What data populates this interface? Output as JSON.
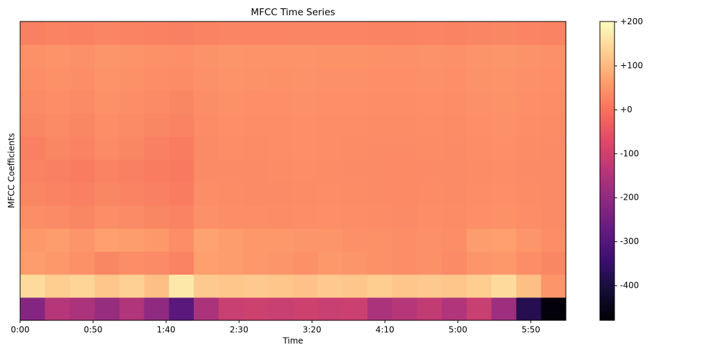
{
  "chart_data": {
    "type": "heatmap",
    "title": "MFCC Time Series",
    "x_label": "Time",
    "y_label": "MFCC Coefficients",
    "colormap": "magma",
    "x": [
      8.5,
      25.5,
      42.5,
      59.5,
      76.5,
      93.5,
      110.5,
      127.5,
      144.5,
      161.5,
      178.5,
      195.5,
      212.5,
      229.5,
      246.5,
      263.5,
      280.5,
      297.5,
      314.5,
      331.5,
      348.5,
      365.5
    ],
    "xlim": [
      0,
      374
    ],
    "xticks": [
      {
        "value": 0,
        "label": "0:00"
      },
      {
        "value": 50,
        "label": "0:50"
      },
      {
        "value": 100,
        "label": "1:40"
      },
      {
        "value": 150,
        "label": "2:30"
      },
      {
        "value": 200,
        "label": "3:20"
      },
      {
        "value": 250,
        "label": "4:10"
      },
      {
        "value": 300,
        "label": "5:00"
      },
      {
        "value": 350,
        "label": "5:50"
      }
    ],
    "values": [
      [
        -220,
        -140,
        -160,
        -190,
        -150,
        -200,
        -290,
        -160,
        -110,
        -100,
        -110,
        -100,
        -110,
        -105,
        -160,
        -140,
        -120,
        -150,
        -110,
        -180,
        -380,
        -470
      ],
      [
        150,
        130,
        140,
        120,
        135,
        110,
        170,
        125,
        120,
        125,
        120,
        115,
        125,
        120,
        130,
        120,
        125,
        120,
        130,
        150,
        110,
        50
      ],
      [
        60,
        55,
        45,
        30,
        40,
        35,
        25,
        65,
        60,
        55,
        50,
        45,
        55,
        50,
        45,
        40,
        45,
        35,
        50,
        55,
        40,
        30
      ],
      [
        55,
        60,
        50,
        65,
        60,
        55,
        40,
        70,
        60,
        55,
        55,
        50,
        50,
        45,
        45,
        40,
        45,
        40,
        60,
        65,
        50,
        40
      ],
      [
        40,
        35,
        30,
        40,
        35,
        30,
        25,
        45,
        40,
        40,
        38,
        40,
        42,
        40,
        38,
        36,
        40,
        38,
        42,
        45,
        40,
        35
      ],
      [
        30,
        25,
        20,
        30,
        25,
        20,
        15,
        40,
        38,
        35,
        36,
        38,
        40,
        38,
        36,
        34,
        38,
        36,
        40,
        42,
        38,
        35
      ],
      [
        25,
        20,
        15,
        25,
        20,
        15,
        10,
        35,
        35,
        36,
        38,
        40,
        38,
        36,
        35,
        34,
        36,
        35,
        38,
        40,
        36,
        35
      ],
      [
        20,
        30,
        25,
        35,
        30,
        20,
        15,
        35,
        40,
        38,
        40,
        42,
        40,
        38,
        36,
        36,
        38,
        36,
        40,
        42,
        38,
        36
      ],
      [
        30,
        35,
        30,
        40,
        35,
        30,
        25,
        38,
        42,
        40,
        40,
        42,
        40,
        40,
        38,
        38,
        40,
        38,
        42,
        44,
        40,
        38
      ],
      [
        35,
        40,
        35,
        45,
        40,
        35,
        30,
        40,
        45,
        42,
        42,
        44,
        42,
        42,
        40,
        40,
        42,
        40,
        44,
        46,
        42,
        40
      ],
      [
        40,
        45,
        40,
        48,
        45,
        40,
        38,
        44,
        48,
        46,
        45,
        46,
        44,
        44,
        42,
        42,
        44,
        42,
        46,
        48,
        44,
        42
      ],
      [
        45,
        48,
        44,
        50,
        48,
        45,
        42,
        46,
        50,
        48,
        48,
        48,
        46,
        46,
        45,
        44,
        46,
        44,
        48,
        50,
        46,
        44
      ],
      [
        20,
        25,
        22,
        28,
        25,
        22,
        20,
        24,
        28,
        26,
        26,
        28,
        26,
        26,
        25,
        24,
        26,
        24,
        28,
        30,
        26,
        24
      ]
    ],
    "colorbar_lim": [
      -479,
      201
    ],
    "colorbar_ticks": [
      {
        "value": 200,
        "label": "+200"
      },
      {
        "value": 100,
        "label": "+100"
      },
      {
        "value": 0,
        "label": "+0"
      },
      -100,
      -200,
      -300,
      -400
    ]
  }
}
